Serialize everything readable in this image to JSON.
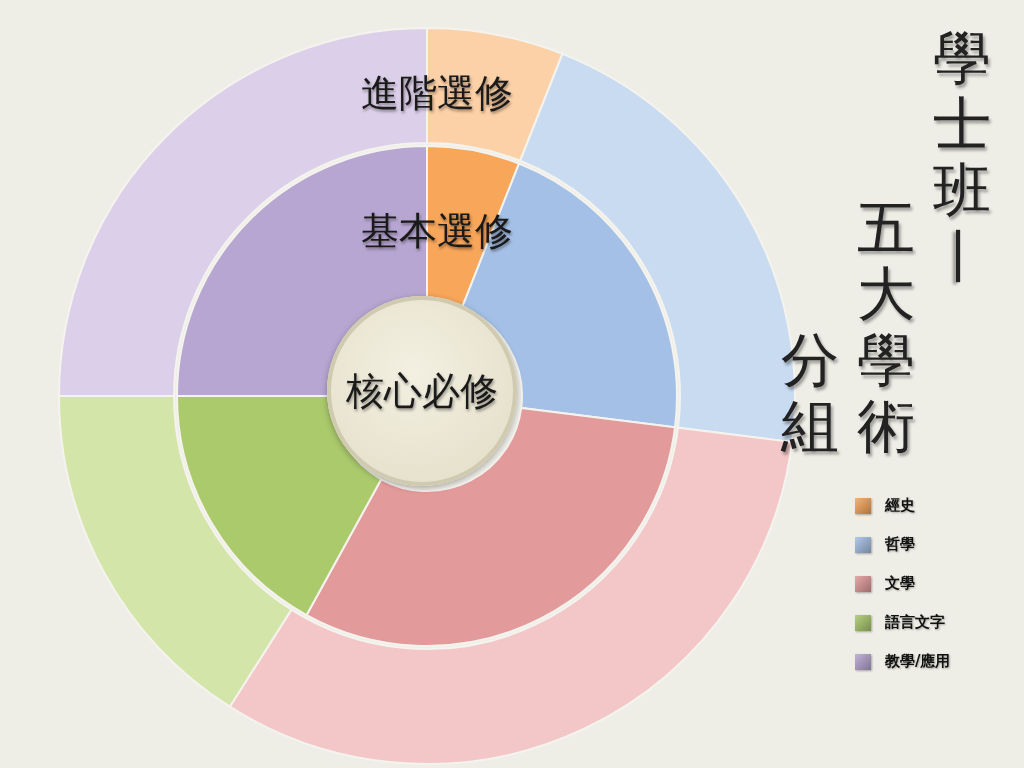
{
  "chart_data": {
    "type": "donut",
    "title": "學士班—五大學術分組",
    "categories": [
      "經史",
      "哲學",
      "文學",
      "語言文字",
      "教學/應用"
    ],
    "series": [
      {
        "name": "基本選修",
        "colors": [
          "#f8a65a",
          "#a5c0e6",
          "#e39a9b",
          "#abca6c",
          "#b8a6d2"
        ],
        "values": [
          6,
          21,
          31,
          17,
          25
        ]
      },
      {
        "name": "進階選修",
        "colors": [
          "#fdd1a7",
          "#c9dbf1",
          "#f3c6c7",
          "#d3e5a8",
          "#dccfe9"
        ],
        "values": [
          6,
          21,
          32,
          16,
          25
        ]
      }
    ],
    "annotations": [
      "核心必修"
    ],
    "legend": "bottom right"
  }
}
